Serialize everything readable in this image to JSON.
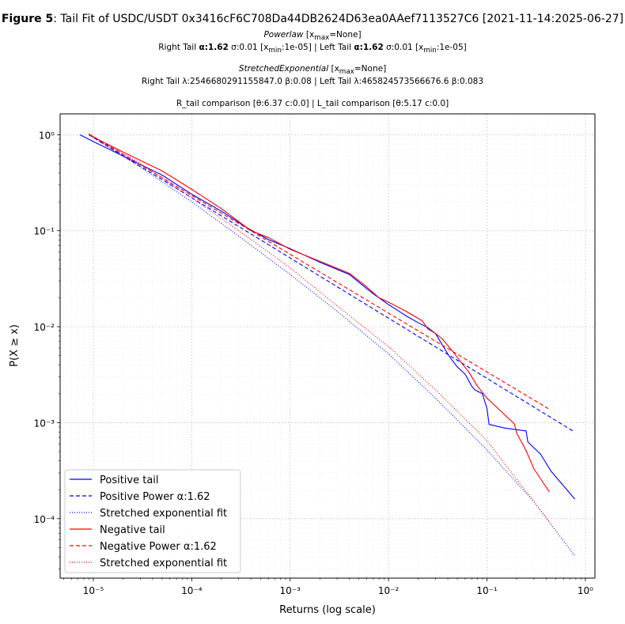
{
  "header": {
    "figure_label": "Figure 5",
    "title_rest": ": Tail Fit of USDC/USDT 0x3416cF6C708Da44DB2624D63ea0AAef7113527C6 [2021-11-14:2025-06-27]",
    "powerlaw_name": "Powerlaw",
    "powerlaw_xmax": "[x",
    "powerlaw_xmax_sub": "max",
    "powerlaw_xmax_val": "=None]",
    "pl_right": "Right Tail ",
    "pl_alpha_sym": "α:",
    "pl_right_alpha": "1.62",
    "pl_right_rest": " σ:0.01 [x",
    "pl_xmin_sub": "min",
    "pl_right_xmin": ":1e-05] | Left Tail ",
    "pl_left_alpha": "1.62",
    "pl_left_rest": " σ:0.01 [x",
    "pl_left_xmin": ":1e-05]",
    "se_name": "StretchedExponential",
    "se_line": "Right Tail λ:2546680291155847.0 β:0.08 | Left Tail λ:465824573566676.6 β:0.083",
    "cmp_line": "R_tail comparison [θ:6.37 c:0.0] | L_tail comparison [θ:5.17 c:0.0]"
  },
  "chart_data": {
    "type": "line",
    "xscale": "log",
    "yscale": "log",
    "xlabel": "Returns (log scale)",
    "ylabel": "P(X ≥ x)",
    "xlim": [
      4.6e-06,
      1.25
    ],
    "ylim": [
      2.4e-05,
      1.65
    ],
    "xticks": [
      {
        "v": 1e-05,
        "label": "10⁻⁵"
      },
      {
        "v": 0.0001,
        "label": "10⁻⁴"
      },
      {
        "v": 0.001,
        "label": "10⁻³"
      },
      {
        "v": 0.01,
        "label": "10⁻²"
      },
      {
        "v": 0.1,
        "label": "10⁻¹"
      },
      {
        "v": 1,
        "label": "10⁰"
      }
    ],
    "yticks": [
      {
        "v": 0.0001,
        "label": "10⁻⁴"
      },
      {
        "v": 0.001,
        "label": "10⁻³"
      },
      {
        "v": 0.01,
        "label": "10⁻²"
      },
      {
        "v": 0.1,
        "label": "10⁻¹"
      },
      {
        "v": 1,
        "label": "10⁰"
      }
    ],
    "grid": true,
    "legend_position": "lower-left",
    "series": [
      {
        "name": "Positive tail",
        "color": "#0000ff",
        "dash": "solid",
        "x": [
          7.3e-06,
          1e-05,
          2e-05,
          5e-05,
          0.0001,
          0.0002,
          0.00035,
          0.0006,
          0.001,
          0.002,
          0.004,
          0.005,
          0.007,
          0.01,
          0.015,
          0.02,
          0.025,
          0.03,
          0.035,
          0.042,
          0.05,
          0.06,
          0.07,
          0.075,
          0.09,
          0.1,
          0.105,
          0.15,
          0.25,
          0.26,
          0.35,
          0.45,
          0.78
        ],
        "y": [
          1.0,
          0.85,
          0.6,
          0.38,
          0.24,
          0.16,
          0.11,
          0.081,
          0.065,
          0.047,
          0.035,
          0.029,
          0.022,
          0.017,
          0.013,
          0.011,
          0.0098,
          0.0085,
          0.0065,
          0.0048,
          0.0038,
          0.0032,
          0.0024,
          0.0022,
          0.002,
          0.0014,
          0.00096,
          0.00088,
          0.00082,
          0.00063,
          0.00047,
          0.00031,
          0.00016
        ]
      },
      {
        "name": "Positive Power α:1.62",
        "color": "#0000ff",
        "dash": "dashed",
        "x": [
          9e-06,
          0.76
        ],
        "y": [
          1.0,
          0.00081
        ]
      },
      {
        "name": "Stretched exponential fit",
        "color": "#0000ff",
        "dash": "dotted",
        "x": [
          9e-06,
          3e-05,
          0.0001,
          0.0003,
          0.001,
          0.003,
          0.01,
          0.03,
          0.1,
          0.3,
          0.78
        ],
        "y": [
          1.0,
          0.46,
          0.2,
          0.088,
          0.035,
          0.0145,
          0.0052,
          0.0018,
          0.00052,
          0.00015,
          4.1e-05
        ]
      },
      {
        "name": "Negative tail",
        "color": "#ff0000",
        "dash": "solid",
        "x": [
          9e-06,
          2e-05,
          5e-05,
          0.0001,
          0.0002,
          0.0004,
          0.0006,
          0.001,
          0.002,
          0.004,
          0.006,
          0.008,
          0.01,
          0.015,
          0.018,
          0.022,
          0.025,
          0.03,
          0.035,
          0.045,
          0.055,
          0.065,
          0.08,
          0.1,
          0.19,
          0.2,
          0.25,
          0.3,
          0.43
        ],
        "y": [
          1.0,
          0.66,
          0.42,
          0.27,
          0.17,
          0.1,
          0.085,
          0.064,
          0.048,
          0.036,
          0.026,
          0.02,
          0.018,
          0.0145,
          0.013,
          0.0115,
          0.0095,
          0.0085,
          0.0075,
          0.0055,
          0.0042,
          0.0034,
          0.0024,
          0.0018,
          0.00097,
          0.00078,
          0.00051,
          0.00033,
          0.00019
        ]
      },
      {
        "name": "Negative Power α:1.62",
        "color": "#ff0000",
        "dash": "dashed",
        "x": [
          9e-06,
          0.43
        ],
        "y": [
          1.02,
          0.00138
        ]
      },
      {
        "name": "Stretched exponential fit",
        "color": "#ff0000",
        "dash": "dotted",
        "x": [
          9e-06,
          3e-05,
          0.0001,
          0.0003,
          0.001,
          0.003,
          0.01,
          0.03,
          0.1,
          0.43
        ],
        "y": [
          1.02,
          0.5,
          0.22,
          0.1,
          0.041,
          0.0165,
          0.0062,
          0.0022,
          0.00065,
          9.3e-05
        ]
      }
    ]
  }
}
